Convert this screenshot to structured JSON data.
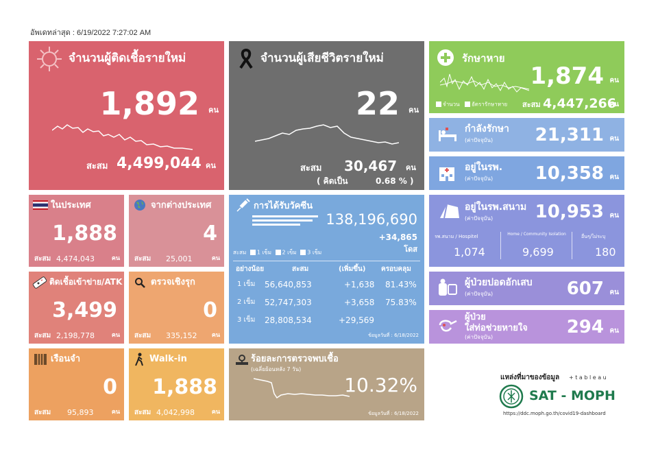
{
  "updated": "อัพเดทล่าสุด : 6/19/2022 7:27:02 AM",
  "unit": "คน",
  "new_cases": {
    "title": "จำนวนผู้ติดเชื้อรายใหม่",
    "value": "1,892",
    "cum_label": "สะสม",
    "cum_value": "4,499,044",
    "color": "#d9636e"
  },
  "new_deaths": {
    "title": "จำนวนผู้เสียชีวิตรายใหม่",
    "value": "22",
    "cum_label": "สะสม",
    "cum_value": "30,467",
    "pct_label": "( คิดเป็น",
    "pct_value": "0.68 % )",
    "color": "#6e6e6e"
  },
  "recovered": {
    "title": "รักษาหาย",
    "value": "1,874",
    "cum_label": "สะสม",
    "cum_value": "4,447,266",
    "legend_count": "จำนวน",
    "legend_rate": "อัตรารักษาหาย",
    "color": "#8fcb5a"
  },
  "treating": {
    "title": "กำลังรักษา",
    "sub": "(ค่าปัจจุบัน)",
    "value": "21,311",
    "color": "#8fb2e3"
  },
  "in_hospital": {
    "title": "อยู่ในรพ.",
    "sub": "(ค่าปัจจุบัน)",
    "value": "10,358",
    "color": "#7fa6e0"
  },
  "field_hospital": {
    "title": "อยู่ในรพ.สนาม",
    "sub": "(ค่าปัจจุบัน)",
    "value": "10,953",
    "col1_label": "รพ.สนาม / Hospitel",
    "col1_value": "1,074",
    "col2_label": "Home / Community Isolation",
    "col2_value": "9,699",
    "col3_label": "อื่นๆ/ไม่ระบุ",
    "col3_value": "180",
    "color": "#8b95dd"
  },
  "pneumonia": {
    "title": "ผู้ป่วยปอดอักเสบ",
    "sub": "(ค่าปัจจุบัน)",
    "value": "607",
    "color": "#9a8fd9"
  },
  "ventilator": {
    "title1": "ผู้ป่วย",
    "title2": "ใส่ท่อช่วยหายใจ",
    "sub": "(ค่าปัจจุบัน)",
    "value": "294",
    "color": "#b993dc"
  },
  "domestic": {
    "title": "ในประเทศ",
    "value": "1,888",
    "cum_label": "สะสม",
    "cum_value": "4,474,043",
    "color": "#d9808a"
  },
  "imported": {
    "title": "จากต่างประเทศ",
    "value": "4",
    "cum_label": "สะสม",
    "cum_value": "25,001",
    "color": "#d99198"
  },
  "prison": {
    "title": "ติดเชื้อเข้าข่าย/ATK",
    "value": "3,499",
    "cum_label": "สะสม",
    "cum_value": "2,198,778",
    "color": "#e0827a"
  },
  "active": {
    "title": "ตรวจเชิงรุก",
    "value": "0",
    "cum_label": "สะสม",
    "cum_value": "335,152",
    "color": "#eea670"
  },
  "jail": {
    "title": "เรือนจำ",
    "value": "0",
    "cum_label": "สะสม",
    "cum_value": "95,893",
    "color": "#eda160"
  },
  "walkin": {
    "title": "Walk-in",
    "value": "1,888",
    "cum_label": "สะสม",
    "cum_value": "4,042,998",
    "color": "#f0b660"
  },
  "vaccine": {
    "title": "การได้รับวัคซีน",
    "total": "138,196,690",
    "delta": "+34,865",
    "dose_unit": "โดส",
    "legend_cum": "สะสม",
    "legend_d1": "1 เข็ม",
    "legend_d2": "2 เข็ม",
    "legend_d3": "3 เข็ม",
    "headers": [
      "อย่างน้อย",
      "สะสม",
      "(เพิ่มขึ้น)",
      "ครอบคลุม"
    ],
    "rows": [
      [
        "1 เข็ม",
        "56,640,853",
        "+1,638",
        "81.43%"
      ],
      [
        "2 เข็ม",
        "52,747,303",
        "+3,658",
        "75.83%"
      ],
      [
        "3 เข็ม",
        "28,808,534",
        "+29,569",
        ""
      ]
    ],
    "date": "ข้อมูลวันที่ : 6/18/2022",
    "color": "#79a9dc"
  },
  "positivity": {
    "title": "ร้อยละการตรวจพบเชื้อ",
    "sub": "(เฉลี่ยย้อนหลัง 7 วัน)",
    "value": "10.32%",
    "date": "ข้อมูลวันที่ : 6/18/2022",
    "color": "#b8a488"
  },
  "source": {
    "label": "แหล่งที่มาของข้อมูล",
    "tableau": "+ t a b l e a u",
    "brand": "SAT - MOPH",
    "url": "https://ddc.moph.go.th/covid19-dashboard"
  }
}
